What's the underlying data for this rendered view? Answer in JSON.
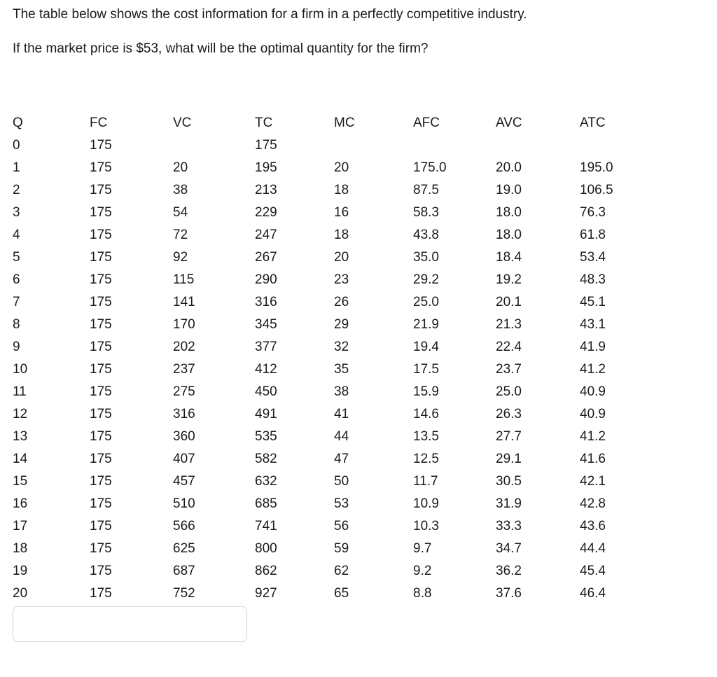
{
  "question": {
    "line1": "The table below shows the cost information for a firm in a perfectly competitive industry.",
    "line2": "If the market price is $53, what will be the optimal quantity for the firm?"
  },
  "table": {
    "columns": [
      "Q",
      "FC",
      "VC",
      "TC",
      "MC",
      "AFC",
      "AVC",
      "ATC"
    ],
    "rows": [
      [
        "0",
        "175",
        "",
        "175",
        "",
        "",
        "",
        ""
      ],
      [
        "1",
        "175",
        "20",
        "195",
        "20",
        "175.0",
        "20.0",
        "195.0"
      ],
      [
        "2",
        "175",
        "38",
        "213",
        "18",
        "87.5",
        "19.0",
        "106.5"
      ],
      [
        "3",
        "175",
        "54",
        "229",
        "16",
        "58.3",
        "18.0",
        "76.3"
      ],
      [
        "4",
        "175",
        "72",
        "247",
        "18",
        "43.8",
        "18.0",
        "61.8"
      ],
      [
        "5",
        "175",
        "92",
        "267",
        "20",
        "35.0",
        "18.4",
        "53.4"
      ],
      [
        "6",
        "175",
        "115",
        "290",
        "23",
        "29.2",
        "19.2",
        "48.3"
      ],
      [
        "7",
        "175",
        "141",
        "316",
        "26",
        "25.0",
        "20.1",
        "45.1"
      ],
      [
        "8",
        "175",
        "170",
        "345",
        "29",
        "21.9",
        "21.3",
        "43.1"
      ],
      [
        "9",
        "175",
        "202",
        "377",
        "32",
        "19.4",
        "22.4",
        "41.9"
      ],
      [
        "10",
        "175",
        "237",
        "412",
        "35",
        "17.5",
        "23.7",
        "41.2"
      ],
      [
        "11",
        "175",
        "275",
        "450",
        "38",
        "15.9",
        "25.0",
        "40.9"
      ],
      [
        "12",
        "175",
        "316",
        "491",
        "41",
        "14.6",
        "26.3",
        "40.9"
      ],
      [
        "13",
        "175",
        "360",
        "535",
        "44",
        "13.5",
        "27.7",
        "41.2"
      ],
      [
        "14",
        "175",
        "407",
        "582",
        "47",
        "12.5",
        "29.1",
        "41.6"
      ],
      [
        "15",
        "175",
        "457",
        "632",
        "50",
        "11.7",
        "30.5",
        "42.1"
      ],
      [
        "16",
        "175",
        "510",
        "685",
        "53",
        "10.9",
        "31.9",
        "42.8"
      ],
      [
        "17",
        "175",
        "566",
        "741",
        "56",
        "10.3",
        "33.3",
        "43.6"
      ],
      [
        "18",
        "175",
        "625",
        "800",
        "59",
        "9.7",
        "34.7",
        "44.4"
      ],
      [
        "19",
        "175",
        "687",
        "862",
        "62",
        "9.2",
        "36.2",
        "45.4"
      ],
      [
        "20",
        "175",
        "752",
        "927",
        "65",
        "8.8",
        "37.6",
        "46.4"
      ]
    ]
  },
  "answer_input": {
    "value": "",
    "placeholder": ""
  },
  "colors": {
    "text": "#1b1b1b",
    "background": "#ffffff",
    "input_border": "#d9d9d9"
  }
}
